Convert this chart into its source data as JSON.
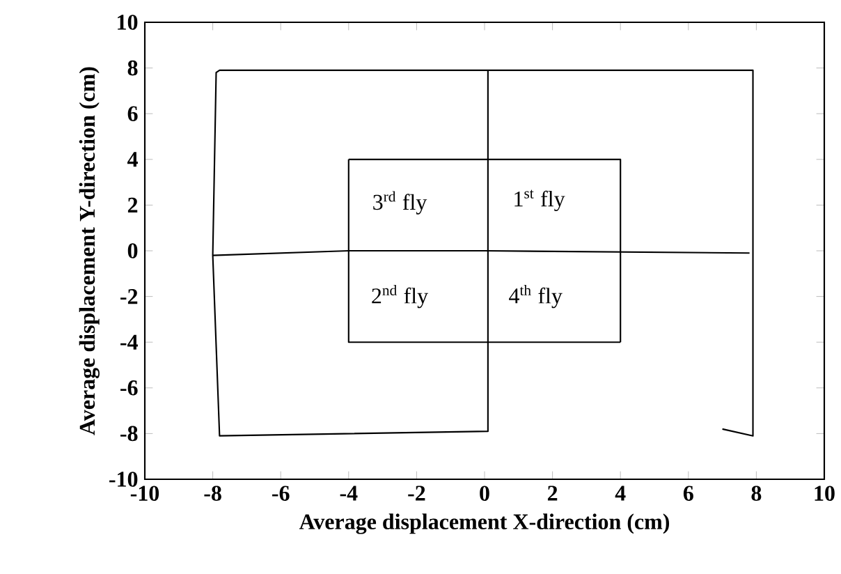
{
  "chart_data": {
    "type": "line",
    "xlabel": "Average displacement X-direction (cm)",
    "ylabel": "Average displacement Y-direction (cm)",
    "series": [
      {
        "color": "#000000",
        "x": [
          7.0,
          7.9,
          7.9,
          -7.8,
          -7.9,
          -8.0,
          -7.8,
          0.1,
          0.1
        ],
        "values": [
          -7.8,
          -8.1,
          7.9,
          7.9,
          7.8,
          -0.2,
          -8.1,
          -7.9,
          7.9
        ]
      },
      {
        "color": "#000000",
        "x": [
          -8.0,
          -4.0,
          0.0,
          7.8
        ],
        "values": [
          -0.2,
          0.0,
          0.0,
          -0.1
        ]
      },
      {
        "color": "#000000",
        "x": [
          -4.0,
          4.0,
          4.0
        ],
        "values": [
          4.0,
          4.0,
          -4.0
        ]
      },
      {
        "color": "#000000",
        "x": [
          4.0,
          -4.0,
          -4.0
        ],
        "values": [
          -4.0,
          -4.0,
          4.0
        ]
      }
    ],
    "xlim": [
      -10,
      10
    ],
    "ylim": [
      -10,
      10
    ],
    "xticks": [
      -10,
      -8,
      -6,
      -4,
      -2,
      0,
      2,
      4,
      6,
      8,
      10
    ],
    "yticks": [
      -10,
      -8,
      -6,
      -4,
      -2,
      0,
      2,
      4,
      6,
      8,
      10
    ],
    "marker": "none",
    "line_style": "solid",
    "annotations": [
      "3$^{rd}$ fly",
      "1$^{st}$ fly",
      "2$^{nd}$ fly",
      "4$^{th}$ fly"
    ]
  }
}
